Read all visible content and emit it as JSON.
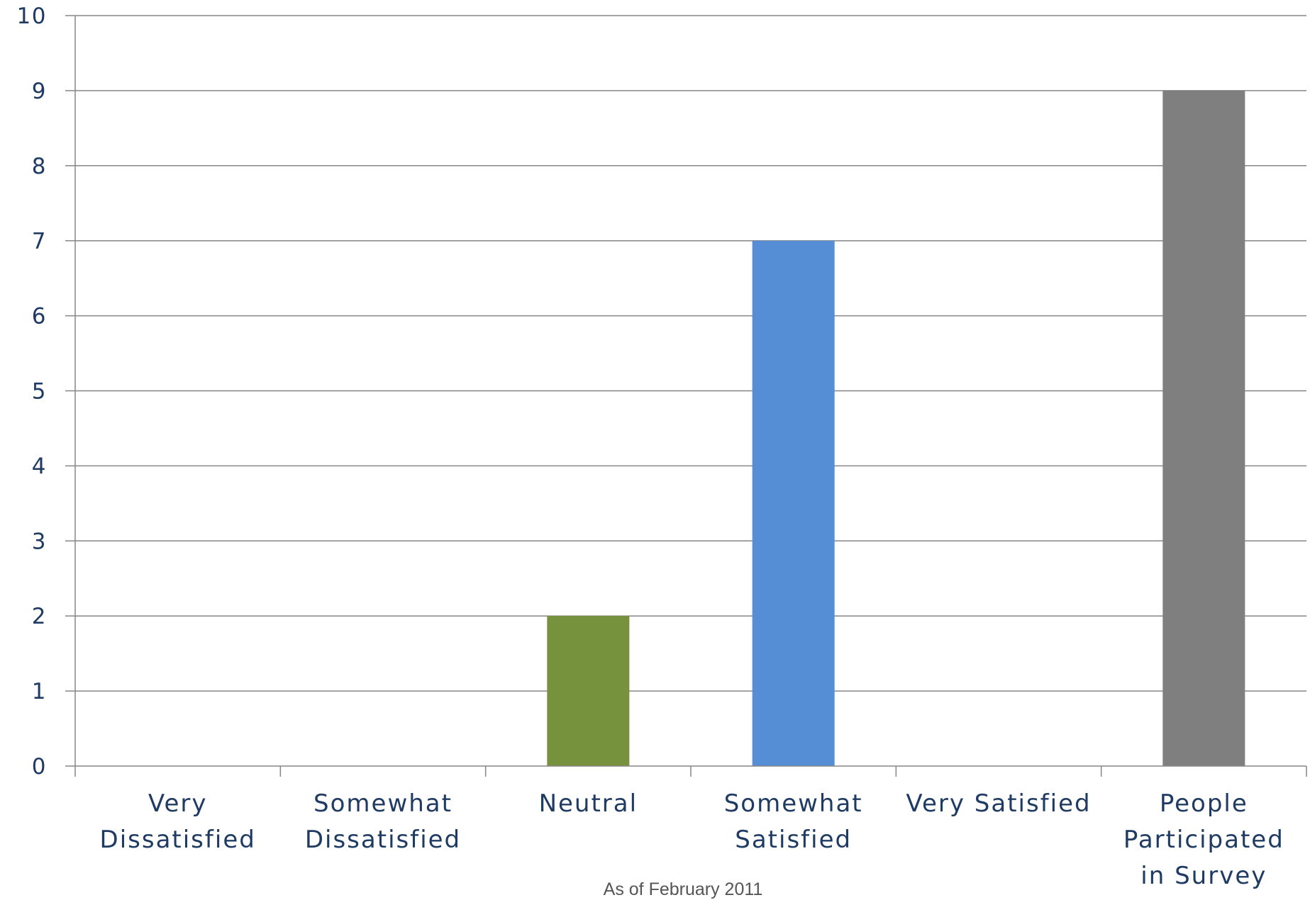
{
  "chart_data": {
    "type": "bar",
    "categories": [
      [
        "Very",
        "Dissatisfied"
      ],
      [
        "Somewhat",
        "Dissatisfied"
      ],
      [
        "Neutral"
      ],
      [
        "Somewhat",
        "Satisfied"
      ],
      [
        "Very Satisfied"
      ],
      [
        "People",
        "Participated",
        "in Survey"
      ]
    ],
    "values": [
      0,
      0,
      2,
      7,
      0,
      9
    ],
    "bar_colors": [
      "#76923c",
      "#76923c",
      "#76923c",
      "#558ed5",
      "#7f7f7f",
      "#7f7f7f"
    ],
    "ylim": [
      0,
      10
    ],
    "yticks": [
      0,
      1,
      2,
      3,
      4,
      5,
      6,
      7,
      8,
      9,
      10
    ],
    "grid": true,
    "footnote": "As of February 2011",
    "colors": {
      "gridline": "#868686",
      "axis": "#868686",
      "label_text": "#1f3b63",
      "footnote_text": "#555555"
    }
  }
}
